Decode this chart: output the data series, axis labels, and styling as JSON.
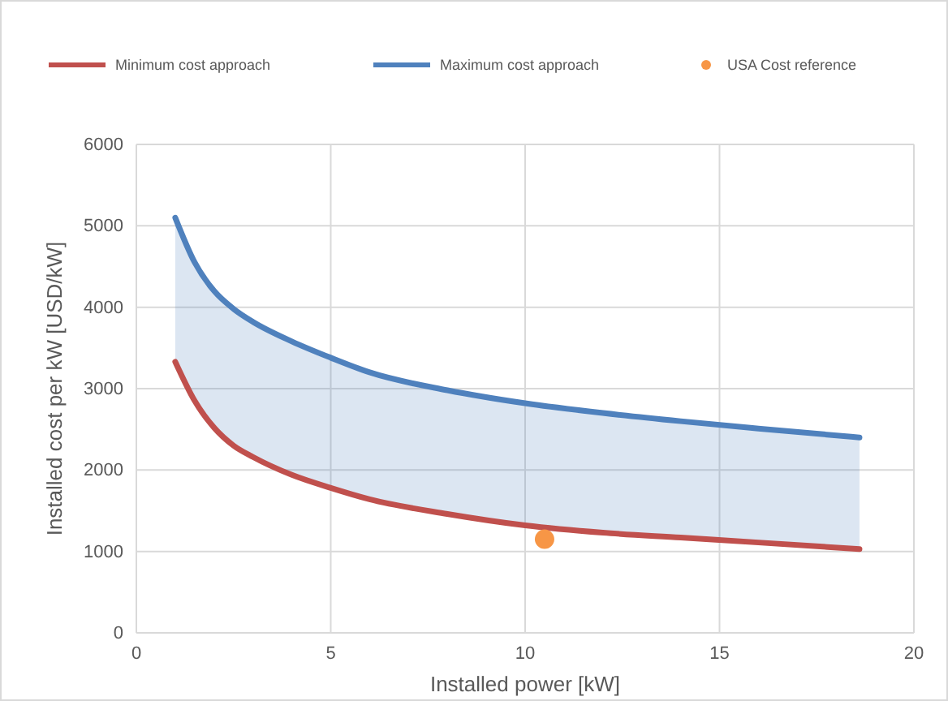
{
  "chart_data": {
    "type": "line",
    "xlabel": "Installed power [kW]",
    "ylabel": "Installed cost per kW [USD/kW]",
    "xlim": [
      0,
      20
    ],
    "xticks": [
      0,
      5,
      10,
      15,
      20
    ],
    "ylim": [
      0,
      6000
    ],
    "yticks": [
      0,
      1000,
      2000,
      3000,
      4000,
      5000,
      6000
    ],
    "grid": true,
    "legend": "top",
    "line_style": "solid",
    "series": [
      {
        "name": "Minimum cost approach",
        "color": "#c0504d",
        "marker": "none",
        "x": [
          1,
          1.5,
          2,
          2.5,
          3,
          4,
          5,
          6,
          8,
          10,
          12,
          14,
          16,
          18.6
        ],
        "values": [
          3330,
          2850,
          2520,
          2300,
          2160,
          1940,
          1780,
          1640,
          1460,
          1320,
          1230,
          1170,
          1110,
          1030
        ]
      },
      {
        "name": "Maximum cost approach",
        "color": "#4f81bd",
        "marker": "none",
        "x": [
          1,
          1.5,
          2,
          2.5,
          3,
          4,
          5,
          6,
          8,
          10,
          12,
          14,
          16,
          18.6
        ],
        "values": [
          5100,
          4550,
          4200,
          3980,
          3820,
          3580,
          3380,
          3200,
          2980,
          2820,
          2700,
          2600,
          2510,
          2400
        ],
        "lower": [
          3330,
          2850,
          2520,
          2300,
          2160,
          1940,
          1780,
          1640,
          1460,
          1320,
          1230,
          1170,
          1110,
          1030
        ],
        "upper": [
          5100,
          4550,
          4200,
          3980,
          3820,
          3580,
          3380,
          3200,
          2980,
          2820,
          2700,
          2600,
          2510,
          2400
        ]
      },
      {
        "name": "USA Cost reference",
        "type": "scatter",
        "marker": "circle",
        "color": "#f79646",
        "x": [
          10.5
        ],
        "values": [
          1150
        ]
      }
    ]
  }
}
